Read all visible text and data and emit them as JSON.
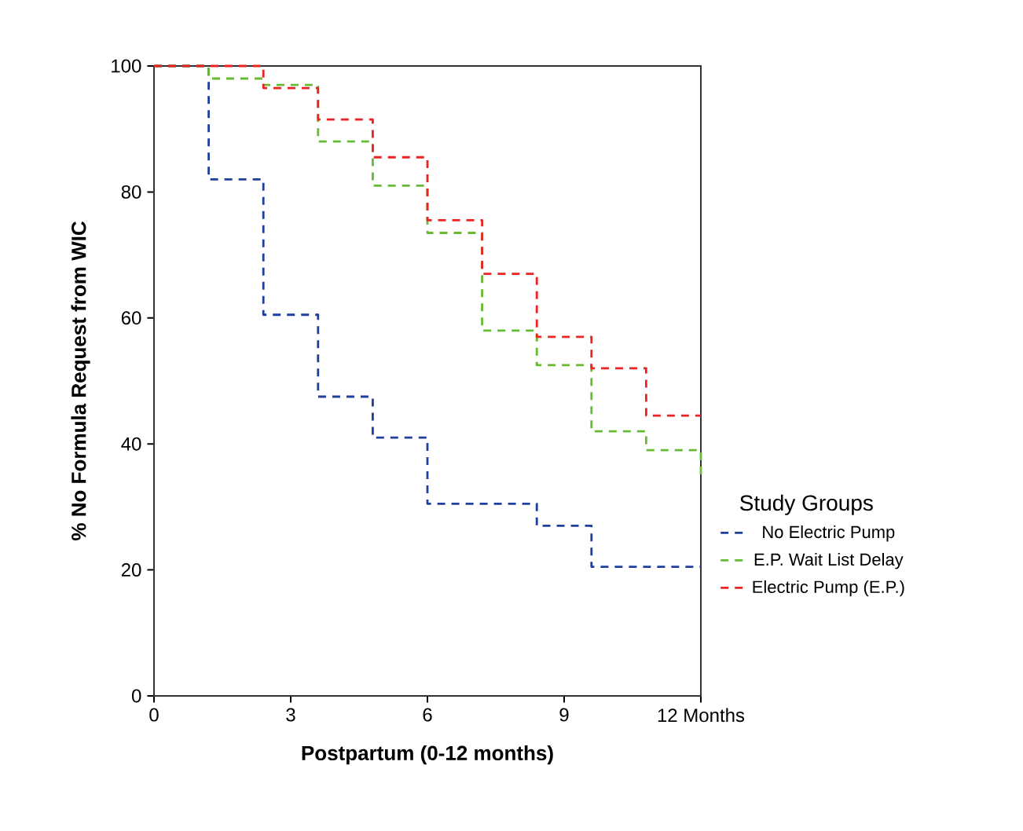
{
  "chart_data": {
    "type": "step",
    "xlabel": "Postpartum (0-12 months)",
    "ylabel": "% No Formula Request from WIC",
    "legend_title": "Study Groups",
    "xlim": [
      0,
      12
    ],
    "ylim": [
      0,
      100
    ],
    "xticks": [
      0,
      3,
      6,
      9,
      {
        "value": 12,
        "label": "12 Months"
      }
    ],
    "yticks": [
      0,
      20,
      40,
      60,
      80,
      100
    ],
    "legend": "right",
    "line_style": "dashed",
    "grid": false,
    "series": [
      {
        "name": "No Electric Pump",
        "color": "#1f3f9f",
        "x": [
          0,
          1.2,
          2.4,
          3.6,
          4.8,
          6.0,
          8.4,
          9.6,
          12
        ],
        "values": [
          100,
          82,
          60.5,
          47.5,
          41,
          30.5,
          27,
          20.5,
          20.5
        ]
      },
      {
        "name": "E.P. Wait List Delay",
        "color": "#66bb33",
        "x": [
          0,
          1.2,
          2.4,
          3.6,
          4.8,
          6.0,
          7.2,
          8.4,
          9.6,
          10.8,
          12
        ],
        "values": [
          100,
          98,
          97,
          88,
          81,
          73.5,
          58,
          52.5,
          42,
          39,
          35
        ]
      },
      {
        "name": "Electric Pump (E.P.)",
        "color": "#ee2222",
        "x": [
          0,
          2.4,
          3.6,
          4.8,
          6.0,
          7.2,
          8.4,
          9.6,
          10.8,
          12
        ],
        "values": [
          100,
          96.5,
          91.5,
          85.5,
          75.5,
          67,
          57,
          52,
          44.5,
          44.5
        ]
      }
    ]
  }
}
